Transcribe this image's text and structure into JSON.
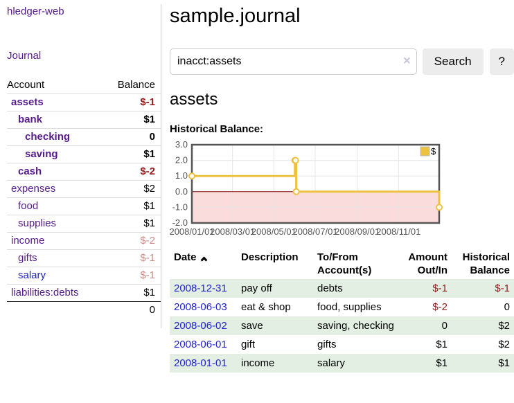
{
  "app": {
    "brand": "hledger-web",
    "nav_journal": "Journal"
  },
  "header": {
    "title": "sample.journal"
  },
  "search": {
    "query": "inacct:assets",
    "clear_icon": "×",
    "button_label": "Search",
    "help_label": "?"
  },
  "account_page": {
    "heading": "assets",
    "chart_label": "Historical Balance:"
  },
  "sidebar": {
    "accounts_table": {
      "headers": {
        "account": "Account",
        "balance": "Balance"
      },
      "rows": [
        {
          "name": "assets",
          "balance": "$-1",
          "indent": 0,
          "bold": true
        },
        {
          "name": "bank",
          "balance": "$1",
          "indent": 1,
          "bold": true
        },
        {
          "name": "checking",
          "balance": "0",
          "indent": 2,
          "bold": true
        },
        {
          "name": "saving",
          "balance": "$1",
          "indent": 2,
          "bold": true
        },
        {
          "name": "cash",
          "balance": "$-2",
          "indent": 1,
          "bold": true
        },
        {
          "name": "expenses",
          "balance": "$2",
          "indent": 0,
          "bold": false
        },
        {
          "name": "food",
          "balance": "$1",
          "indent": 1,
          "bold": false
        },
        {
          "name": "supplies",
          "balance": "$1",
          "indent": 1,
          "bold": false
        },
        {
          "name": "income",
          "balance": "$-2",
          "indent": 0,
          "bold": false
        },
        {
          "name": "gifts",
          "balance": "$-1",
          "indent": 1,
          "bold": false
        },
        {
          "name": "salary",
          "balance": "$-1",
          "indent": 1,
          "bold": false,
          "unvisited": true
        },
        {
          "name": "liabilities:debts",
          "balance": "$1",
          "indent": 0,
          "bold": false
        }
      ],
      "total": "0"
    }
  },
  "chart_data": {
    "type": "line",
    "step": true,
    "title": "Historical Balance:",
    "xlim": [
      "2008-01-01",
      "2008-12-31"
    ],
    "ylim": [
      -2,
      3
    ],
    "x_ticks": [
      "2008/01/01",
      "2008/03/01",
      "2008/05/01",
      "2008/07/01",
      "2008/09/01",
      "2008/11/01"
    ],
    "y_ticks": [
      -2,
      -1,
      0,
      1,
      2,
      3
    ],
    "grid": true,
    "legend": {
      "label": "$",
      "position": "top-right"
    },
    "series": [
      {
        "name": "$",
        "color": "#EDC240",
        "points": [
          [
            "2008-01-01",
            1
          ],
          [
            "2008-06-01",
            2
          ],
          [
            "2008-06-02",
            2
          ],
          [
            "2008-06-03",
            0
          ],
          [
            "2008-12-31",
            -1
          ]
        ]
      }
    ],
    "negative_region_fill": "#FBDCDC",
    "zero_line_color": "#7A0000",
    "border_color": "#545454",
    "gridline_color": "#E6E6E6",
    "tick_label_color": "#545454"
  },
  "register_table": {
    "headers": {
      "date": "Date",
      "description": "Description",
      "accounts": "To/From Account(s)",
      "amount": "Amount Out/In",
      "balance": "Historical Balance"
    },
    "sort": {
      "column": "date",
      "direction": "ascending"
    },
    "rows": [
      {
        "date": "2008-12-31",
        "description": "pay off",
        "accounts": "debts",
        "amount": "$-1",
        "balance": "$-1"
      },
      {
        "date": "2008-06-03",
        "description": "eat & shop",
        "accounts": "food, supplies",
        "amount": "$-2",
        "balance": "0"
      },
      {
        "date": "2008-06-02",
        "description": "save",
        "accounts": "saving, checking",
        "amount": "0",
        "balance": "$2"
      },
      {
        "date": "2008-06-01",
        "description": "gift",
        "accounts": "gifts",
        "amount": "$1",
        "balance": "$2"
      },
      {
        "date": "2008-01-01",
        "description": "income",
        "accounts": "salary",
        "amount": "$1",
        "balance": "$1"
      }
    ]
  },
  "colors": {
    "link_purple": "#551A8B",
    "link_blue": "#2222CC",
    "negative_strong": "#8F1D1D",
    "negative_soft": "#C98B85",
    "row_green": "#E3EFE3",
    "series_gold": "#EDC240",
    "chart_negative_fill": "#FBDCDC",
    "chart_zero_line": "#7A0000"
  }
}
